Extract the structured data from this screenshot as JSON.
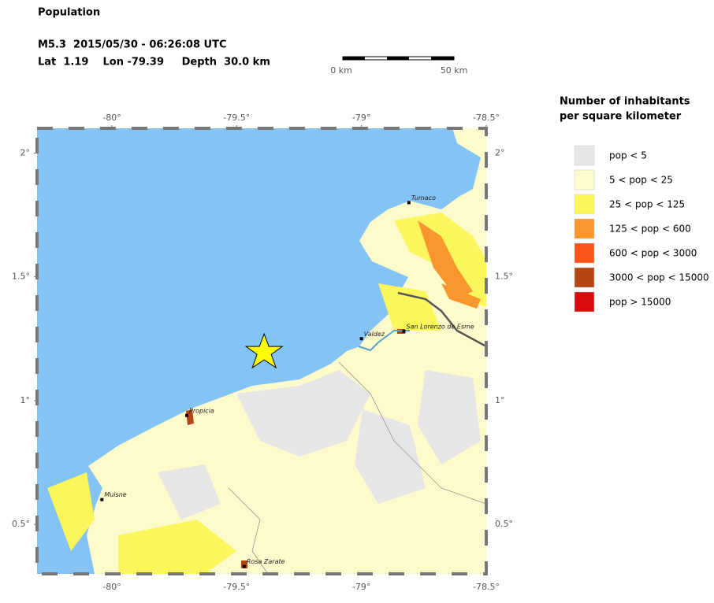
{
  "header": {
    "title": "Population",
    "event": "M5.3  2015/05/30 - 06:26:08 UTC",
    "location": "Lat  1.19    Lon -79.39     Depth  30.0 km"
  },
  "scale_bar": {
    "start": "0 km",
    "end": "50 km"
  },
  "map": {
    "lonlim": [
      -80.3,
      -78.5
    ],
    "latlim": [
      0.3,
      2.1
    ],
    "lonticks": [
      {
        "value": -80,
        "label": "-80°"
      },
      {
        "value": -79.5,
        "label": "-79.5°"
      },
      {
        "value": -79,
        "label": "-79°"
      },
      {
        "value": -78.5,
        "label": "-78.5°"
      }
    ],
    "latticks": [
      {
        "value": 0.5,
        "label": "0.5°"
      },
      {
        "value": 1,
        "label": "1°"
      },
      {
        "value": 1.5,
        "label": "1.5°"
      },
      {
        "value": 2,
        "label": "2°"
      }
    ],
    "epicenter": {
      "lon": -79.39,
      "lat": 1.19
    },
    "places": [
      {
        "name": "Tumaco",
        "lon": -78.81,
        "lat": 1.8
      },
      {
        "name": "San Lorenzo de Esme",
        "lon": -78.83,
        "lat": 1.28
      },
      {
        "name": "Valdez",
        "lon": -79.0,
        "lat": 1.25
      },
      {
        "name": "Propicia",
        "lon": -79.7,
        "lat": 0.94
      },
      {
        "name": "Muisne",
        "lon": -80.04,
        "lat": 0.6
      },
      {
        "name": "Rosa Zarate",
        "lon": -79.47,
        "lat": 0.33
      }
    ]
  },
  "legend": {
    "title": [
      "Number of inhabitants",
      "per square kilometer"
    ],
    "items": [
      {
        "label": "pop < 5",
        "color": "#e6e6e6"
      },
      {
        "label": "5 < pop < 25",
        "color": "#fdfbcb"
      },
      {
        "label": "25 < pop < 125",
        "color": "#fbf65b"
      },
      {
        "label": "125 < pop < 600",
        "color": "#f9962e"
      },
      {
        "label": "600 < pop < 3000",
        "color": "#fc5519"
      },
      {
        "label": "3000 < pop < 15000",
        "color": "#b54511"
      },
      {
        "label": "pop > 15000",
        "color": "#d90d0d"
      }
    ]
  }
}
